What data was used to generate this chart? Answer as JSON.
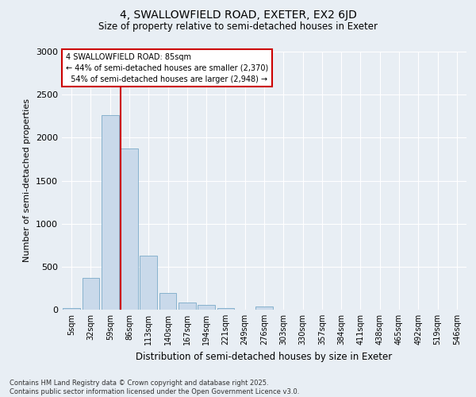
{
  "title_line1": "4, SWALLOWFIELD ROAD, EXETER, EX2 6JD",
  "title_line2": "Size of property relative to semi-detached houses in Exeter",
  "xlabel": "Distribution of semi-detached houses by size in Exeter",
  "ylabel": "Number of semi-detached properties",
  "categories": [
    "5sqm",
    "32sqm",
    "59sqm",
    "86sqm",
    "113sqm",
    "140sqm",
    "167sqm",
    "194sqm",
    "221sqm",
    "249sqm",
    "276sqm",
    "303sqm",
    "330sqm",
    "357sqm",
    "384sqm",
    "411sqm",
    "438sqm",
    "465sqm",
    "492sqm",
    "519sqm",
    "546sqm"
  ],
  "values": [
    20,
    370,
    2260,
    1870,
    630,
    190,
    80,
    55,
    20,
    0,
    40,
    0,
    0,
    0,
    0,
    0,
    0,
    0,
    0,
    0,
    0
  ],
  "bar_color": "#c9d9ea",
  "bar_edge_color": "#7aaac8",
  "pct_smaller": 44,
  "n_smaller": 2370,
  "pct_larger": 54,
  "n_larger": 2948,
  "vline_bar_index": 3,
  "ylim": [
    0,
    3000
  ],
  "yticks": [
    0,
    500,
    1000,
    1500,
    2000,
    2500,
    3000
  ],
  "annotation_box_color": "#cc0000",
  "footer_line1": "Contains HM Land Registry data © Crown copyright and database right 2025.",
  "footer_line2": "Contains public sector information licensed under the Open Government Licence v3.0.",
  "background_color": "#e8eef4",
  "grid_color": "#ffffff"
}
